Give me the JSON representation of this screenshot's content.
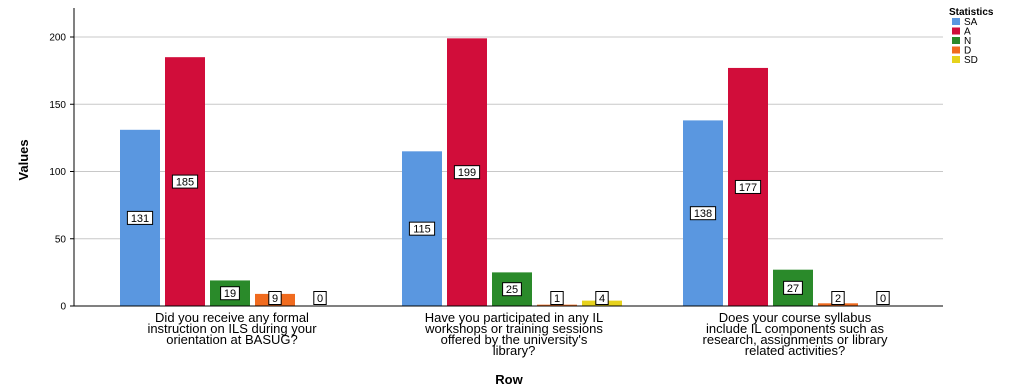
{
  "chart_data": {
    "type": "bar",
    "xlabel": "Row",
    "ylabel": "Values",
    "ylim": [
      0,
      200
    ],
    "yticks": [
      0,
      50,
      100,
      150,
      200
    ],
    "grid": "horizontal",
    "legend_title": "Statistics",
    "legend_position": "top-right",
    "categories": [
      [
        "Did you receive any formal",
        "instruction on ILS during your",
        "orientation at BASUG?"
      ],
      [
        "Have you participated in any IL",
        "workshops or training sessions",
        "offered by the university's",
        "library?"
      ],
      [
        "Does your course syllabus",
        "include IL components such as",
        "research, assignments or library",
        "related activities?"
      ]
    ],
    "series": [
      {
        "name": "SA",
        "color": "#5a97e0",
        "values": [
          131,
          115,
          138
        ]
      },
      {
        "name": "A",
        "color": "#d10d3a",
        "values": [
          185,
          199,
          177
        ]
      },
      {
        "name": "N",
        "color": "#2a8a2a",
        "values": [
          19,
          25,
          27
        ]
      },
      {
        "name": "D",
        "color": "#f06b1f",
        "values": [
          9,
          1,
          2
        ]
      },
      {
        "name": "SD",
        "color": "#e6d21c",
        "values": [
          0,
          4,
          0
        ]
      }
    ]
  }
}
